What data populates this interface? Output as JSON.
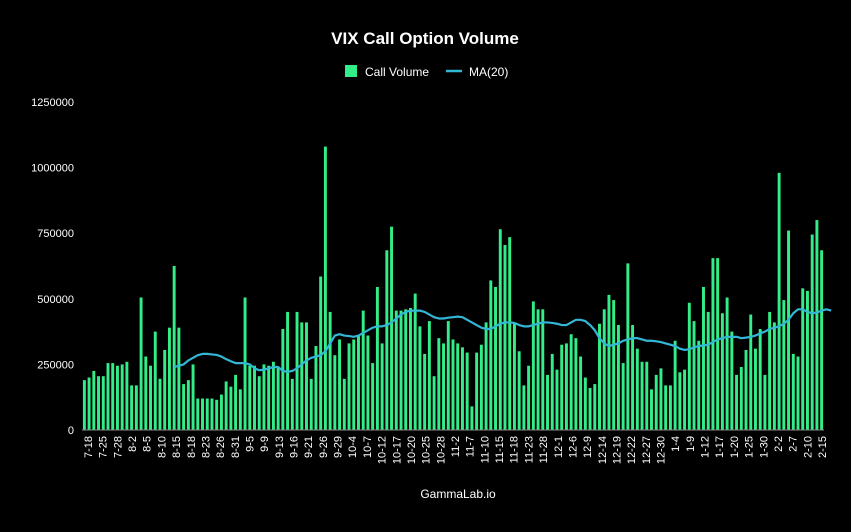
{
  "chart_data": {
    "type": "bar",
    "title": "VIX Call Option Volume",
    "footer": "GammaLab.io",
    "legend": {
      "placement": "top-center",
      "items": [
        {
          "name": "Call Volume",
          "color": "#33ee88",
          "kind": "bar"
        },
        {
          "name": "MA(20)",
          "color": "#33b7d6",
          "kind": "line"
        }
      ]
    },
    "ylim": [
      0,
      1250000
    ],
    "yticks": [
      0,
      250000,
      500000,
      750000,
      1000000,
      1250000
    ],
    "ytick_labels": [
      "0",
      "250000",
      "500000",
      "750000",
      "1000000",
      "1250000"
    ],
    "x_tick_labels": [
      "7-18",
      "7-25",
      "7-28",
      "8-2",
      "8-5",
      "8-10",
      "8-15",
      "8-18",
      "8-23",
      "8-26",
      "8-31",
      "9-5",
      "9-9",
      "9-13",
      "9-16",
      "9-21",
      "9-26",
      "9-29",
      "10-4",
      "10-7",
      "10-12",
      "10-17",
      "10-20",
      "10-25",
      "10-28",
      "11-2",
      "11-7",
      "11-10",
      "11-15",
      "11-18",
      "11-23",
      "11-28",
      "12-1",
      "12-6",
      "12-9",
      "12-14",
      "12-19",
      "12-22",
      "12-27",
      "12-30",
      "1-4",
      "1-9",
      "1-12",
      "1-17",
      "1-20",
      "1-25",
      "1-30",
      "2-2",
      "2-7",
      "2-10",
      "2-15"
    ],
    "series": [
      {
        "name": "Call Volume",
        "values": [
          190000,
          200000,
          225000,
          205000,
          205000,
          255000,
          255000,
          245000,
          250000,
          260000,
          170000,
          170000,
          505000,
          280000,
          245000,
          375000,
          195000,
          305000,
          390000,
          625000,
          390000,
          175000,
          190000,
          250000,
          120000,
          120000,
          120000,
          120000,
          115000,
          135000,
          185000,
          165000,
          210000,
          155000,
          505000,
          245000,
          245000,
          205000,
          250000,
          245000,
          260000,
          240000,
          385000,
          450000,
          195000,
          450000,
          410000,
          410000,
          195000,
          320000,
          585000,
          1080000,
          450000,
          285000,
          345000,
          195000,
          330000,
          345000,
          360000,
          455000,
          360000,
          255000,
          545000,
          330000,
          685000,
          775000,
          455000,
          455000,
          460000,
          465000,
          520000,
          395000,
          290000,
          415000,
          205000,
          350000,
          330000,
          415000,
          345000,
          330000,
          315000,
          295000,
          90000,
          295000,
          325000,
          410000,
          570000,
          545000,
          765000,
          705000,
          735000,
          405000,
          300000,
          170000,
          245000,
          490000,
          460000,
          460000,
          210000,
          290000,
          230000,
          325000,
          330000,
          365000,
          350000,
          280000,
          200000,
          160000,
          175000,
          405000,
          460000,
          515000,
          495000,
          400000,
          255000,
          635000,
          400000,
          310000,
          260000,
          260000,
          155000,
          210000,
          235000,
          170000,
          170000,
          340000,
          220000,
          230000,
          485000,
          415000,
          340000,
          545000,
          450000,
          655000,
          655000,
          445000,
          505000,
          375000,
          210000,
          240000,
          305000,
          440000,
          310000,
          385000,
          210000,
          450000,
          410000,
          980000,
          495000,
          760000,
          290000,
          280000,
          540000,
          530000,
          745000,
          800000,
          685000
        ]
      },
      {
        "name": "MA(20)",
        "values": [
          null,
          null,
          null,
          null,
          null,
          null,
          null,
          null,
          null,
          null,
          null,
          null,
          null,
          null,
          null,
          null,
          null,
          null,
          null,
          240000,
          245000,
          250000,
          265000,
          275000,
          285000,
          290000,
          290000,
          288000,
          286000,
          280000,
          270000,
          262000,
          255000,
          255000,
          255000,
          250000,
          235000,
          228000,
          230000,
          235000,
          240000,
          240000,
          225000,
          222000,
          225000,
          235000,
          250000,
          265000,
          275000,
          280000,
          285000,
          300000,
          330000,
          360000,
          365000,
          360000,
          358000,
          355000,
          360000,
          370000,
          380000,
          390000,
          395000,
          395000,
          400000,
          410000,
          425000,
          440000,
          450000,
          455000,
          455000,
          455000,
          450000,
          440000,
          430000,
          425000,
          425000,
          428000,
          430000,
          432000,
          430000,
          420000,
          410000,
          400000,
          390000,
          385000,
          385000,
          395000,
          405000,
          410000,
          410000,
          408000,
          400000,
          395000,
          395000,
          400000,
          405000,
          410000,
          410000,
          408000,
          405000,
          400000,
          400000,
          410000,
          420000,
          420000,
          415000,
          400000,
          380000,
          350000,
          330000,
          320000,
          325000,
          330000,
          340000,
          345000,
          350000,
          350000,
          345000,
          340000,
          340000,
          338000,
          335000,
          330000,
          325000,
          320000,
          310000,
          305000,
          308000,
          315000,
          320000,
          322000,
          325000,
          335000,
          345000,
          350000,
          355000,
          355000,
          355000,
          350000,
          352000,
          355000,
          360000,
          368000,
          375000,
          385000,
          390000,
          395000,
          405000,
          420000,
          445000,
          460000,
          460000,
          450000,
          445000,
          448000,
          455000,
          460000,
          455000
        ]
      }
    ]
  }
}
